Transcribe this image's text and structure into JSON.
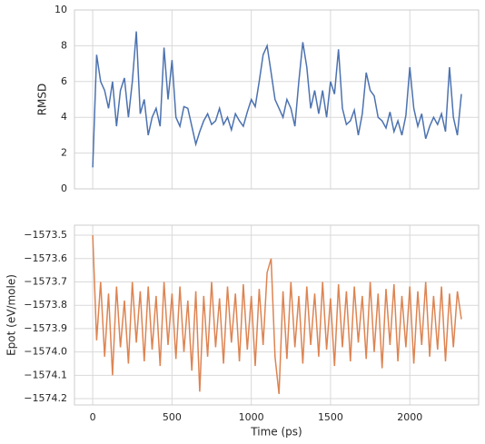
{
  "chart_data": [
    {
      "type": "line",
      "y_label": "RMSD",
      "color": "#4c72b0",
      "grid": true,
      "show_x_tick_labels": false,
      "xlim": [
        -115,
        2434
      ],
      "xticks": [
        0,
        500,
        1000,
        1500,
        2000
      ],
      "ylim": [
        0,
        10
      ],
      "yticks": [
        0,
        2,
        4,
        6,
        8,
        10
      ],
      "x": [
        0,
        25,
        50,
        75,
        100,
        125,
        150,
        175,
        200,
        225,
        250,
        275,
        300,
        325,
        350,
        375,
        400,
        425,
        450,
        475,
        500,
        525,
        550,
        575,
        600,
        625,
        650,
        675,
        700,
        725,
        750,
        775,
        800,
        825,
        850,
        875,
        900,
        925,
        950,
        975,
        1000,
        1025,
        1050,
        1075,
        1100,
        1125,
        1150,
        1175,
        1200,
        1225,
        1250,
        1275,
        1300,
        1325,
        1350,
        1375,
        1400,
        1425,
        1450,
        1475,
        1500,
        1525,
        1550,
        1575,
        1600,
        1625,
        1650,
        1675,
        1700,
        1725,
        1750,
        1775,
        1800,
        1825,
        1850,
        1875,
        1900,
        1925,
        1950,
        1975,
        2000,
        2025,
        2050,
        2075,
        2100,
        2125,
        2150,
        2175,
        2200,
        2225,
        2250,
        2275,
        2300,
        2325
      ],
      "values": [
        1.2,
        7.5,
        6,
        5.5,
        4.5,
        6,
        3.5,
        5.5,
        6.2,
        4,
        6,
        8.8,
        4.2,
        5,
        3,
        4,
        4.5,
        3.5,
        7.9,
        5,
        7.2,
        4,
        3.5,
        4.6,
        4.5,
        3.5,
        2.5,
        3.2,
        3.8,
        4.2,
        3.6,
        3.8,
        4.5,
        3.6,
        4,
        3.3,
        4.2,
        3.8,
        3.5,
        4.3,
        5,
        4.6,
        6,
        7.5,
        8,
        6.5,
        5,
        4.5,
        4,
        5,
        4.5,
        3.5,
        6,
        8.2,
        6.8,
        4.5,
        5.5,
        4.2,
        5.5,
        4,
        6,
        5.3,
        7.8,
        4.5,
        3.6,
        3.8,
        4.4,
        3,
        4.2,
        6.5,
        5.5,
        5.2,
        4,
        3.8,
        3.4,
        4.3,
        3.2,
        3.8,
        3,
        4.1,
        6.8,
        4.5,
        3.5,
        4.2,
        2.8,
        3.5,
        4,
        3.6,
        4.2,
        3.2,
        6.8,
        4,
        3,
        5.3
      ]
    },
    {
      "type": "line",
      "y_label": "Epot (eV/mole)",
      "x_label": "Time (ps)",
      "color": "#dd8452",
      "grid": true,
      "show_x_tick_labels": true,
      "xlim": [
        -115,
        2434
      ],
      "xticks": [
        0,
        500,
        1000,
        1500,
        2000
      ],
      "ylim": [
        -1574.227,
        -1573.457
      ],
      "yticks": [
        {
          "value": -1573.5,
          "label": "−1573.5"
        },
        {
          "value": -1573.6,
          "label": "−1573.6"
        },
        {
          "value": -1573.7,
          "label": "−1573.7"
        },
        {
          "value": -1573.8,
          "label": "−1573.8"
        },
        {
          "value": -1573.9,
          "label": "−1573.9"
        },
        {
          "value": -1574.0,
          "label": "−1574.0"
        },
        {
          "value": -1574.1,
          "label": "−1574.1"
        },
        {
          "value": -1574.2,
          "label": "−1574.2"
        }
      ],
      "x": [
        0,
        25,
        50,
        75,
        100,
        125,
        150,
        175,
        200,
        225,
        250,
        275,
        300,
        325,
        350,
        375,
        400,
        425,
        450,
        475,
        500,
        525,
        550,
        575,
        600,
        625,
        650,
        675,
        700,
        725,
        750,
        775,
        800,
        825,
        850,
        875,
        900,
        925,
        950,
        975,
        1000,
        1025,
        1050,
        1075,
        1100,
        1125,
        1150,
        1175,
        1200,
        1225,
        1250,
        1275,
        1300,
        1325,
        1350,
        1375,
        1400,
        1425,
        1450,
        1475,
        1500,
        1525,
        1550,
        1575,
        1600,
        1625,
        1650,
        1675,
        1700,
        1725,
        1750,
        1775,
        1800,
        1825,
        1850,
        1875,
        1900,
        1925,
        1950,
        1975,
        2000,
        2025,
        2050,
        2075,
        2100,
        2125,
        2150,
        2175,
        2200,
        2225,
        2250,
        2275,
        2300,
        2325
      ],
      "values": [
        -1573.5,
        -1573.95,
        -1573.7,
        -1574.02,
        -1573.75,
        -1574.1,
        -1573.72,
        -1573.98,
        -1573.78,
        -1574.05,
        -1573.7,
        -1573.96,
        -1573.74,
        -1574.04,
        -1573.72,
        -1573.99,
        -1573.76,
        -1574.06,
        -1573.7,
        -1573.97,
        -1573.75,
        -1574.03,
        -1573.72,
        -1574.0,
        -1573.78,
        -1574.08,
        -1573.74,
        -1574.17,
        -1573.76,
        -1574.02,
        -1573.7,
        -1573.98,
        -1573.77,
        -1574.05,
        -1573.72,
        -1573.96,
        -1573.75,
        -1574.04,
        -1573.71,
        -1573.99,
        -1573.76,
        -1574.06,
        -1573.73,
        -1573.97,
        -1573.66,
        -1573.6,
        -1574.02,
        -1574.18,
        -1573.74,
        -1574.03,
        -1573.7,
        -1573.98,
        -1573.76,
        -1574.05,
        -1573.72,
        -1573.97,
        -1573.75,
        -1574.02,
        -1573.7,
        -1573.99,
        -1573.77,
        -1574.06,
        -1573.71,
        -1573.98,
        -1573.74,
        -1574.04,
        -1573.72,
        -1573.96,
        -1573.76,
        -1574.03,
        -1573.7,
        -1574.0,
        -1573.75,
        -1574.07,
        -1573.73,
        -1573.97,
        -1573.71,
        -1574.04,
        -1573.76,
        -1573.98,
        -1573.72,
        -1574.05,
        -1573.74,
        -1573.97,
        -1573.7,
        -1574.02,
        -1573.76,
        -1573.99,
        -1573.72,
        -1574.04,
        -1573.75,
        -1573.98,
        -1573.74,
        -1573.86
      ]
    }
  ]
}
